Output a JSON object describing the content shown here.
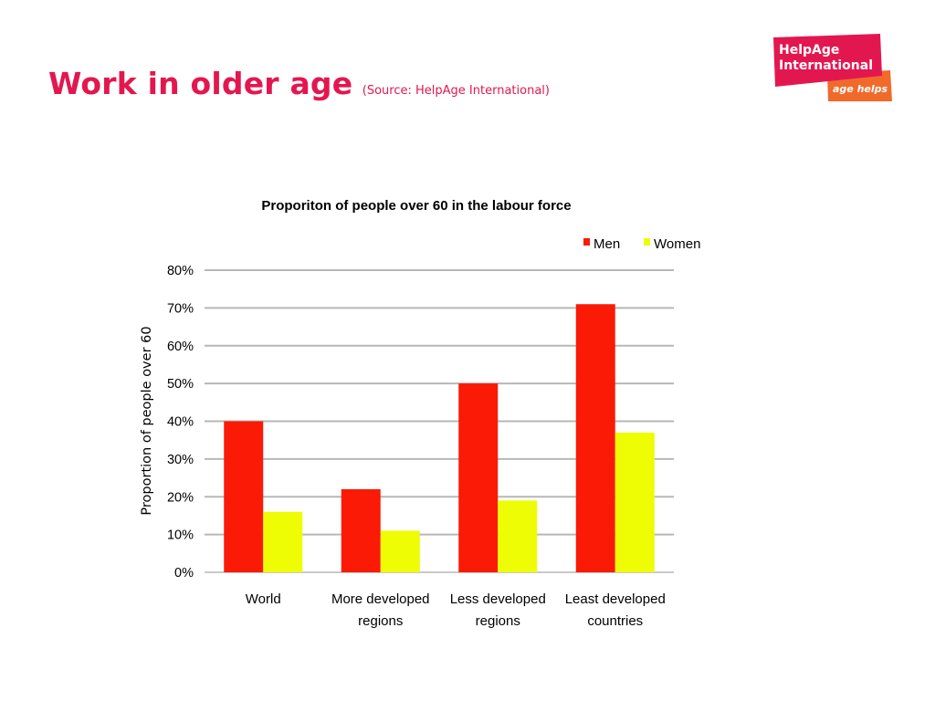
{
  "slide": {
    "title": "Work in older age",
    "source": "(Source: HelpAge International)"
  },
  "logo": {
    "line1": "HelpAge",
    "line2": "International",
    "tagline": "age helps",
    "colors": {
      "primary": "#e3174f",
      "secondary": "#f06a2a"
    }
  },
  "chart_data": {
    "type": "bar",
    "title": "Proporiton of people over 60 in the labour force",
    "ylabel": "Proportion of people over 60",
    "xlabel": "",
    "categories": [
      [
        "World"
      ],
      [
        "More developed",
        "regions"
      ],
      [
        "Less developed",
        "regions"
      ],
      [
        "Least developed",
        "countries"
      ]
    ],
    "series": [
      {
        "name": "Men",
        "color": "#fa1a06",
        "values": [
          40,
          22,
          50,
          71
        ]
      },
      {
        "name": "Women",
        "color": "#eefc04",
        "values": [
          16,
          11,
          19,
          37
        ]
      }
    ],
    "ylim": [
      0,
      80
    ],
    "yticks": [
      "0%",
      "10%",
      "20%",
      "30%",
      "40%",
      "50%",
      "60%",
      "70%",
      "80%"
    ],
    "grid": true,
    "legend": "top-right"
  }
}
